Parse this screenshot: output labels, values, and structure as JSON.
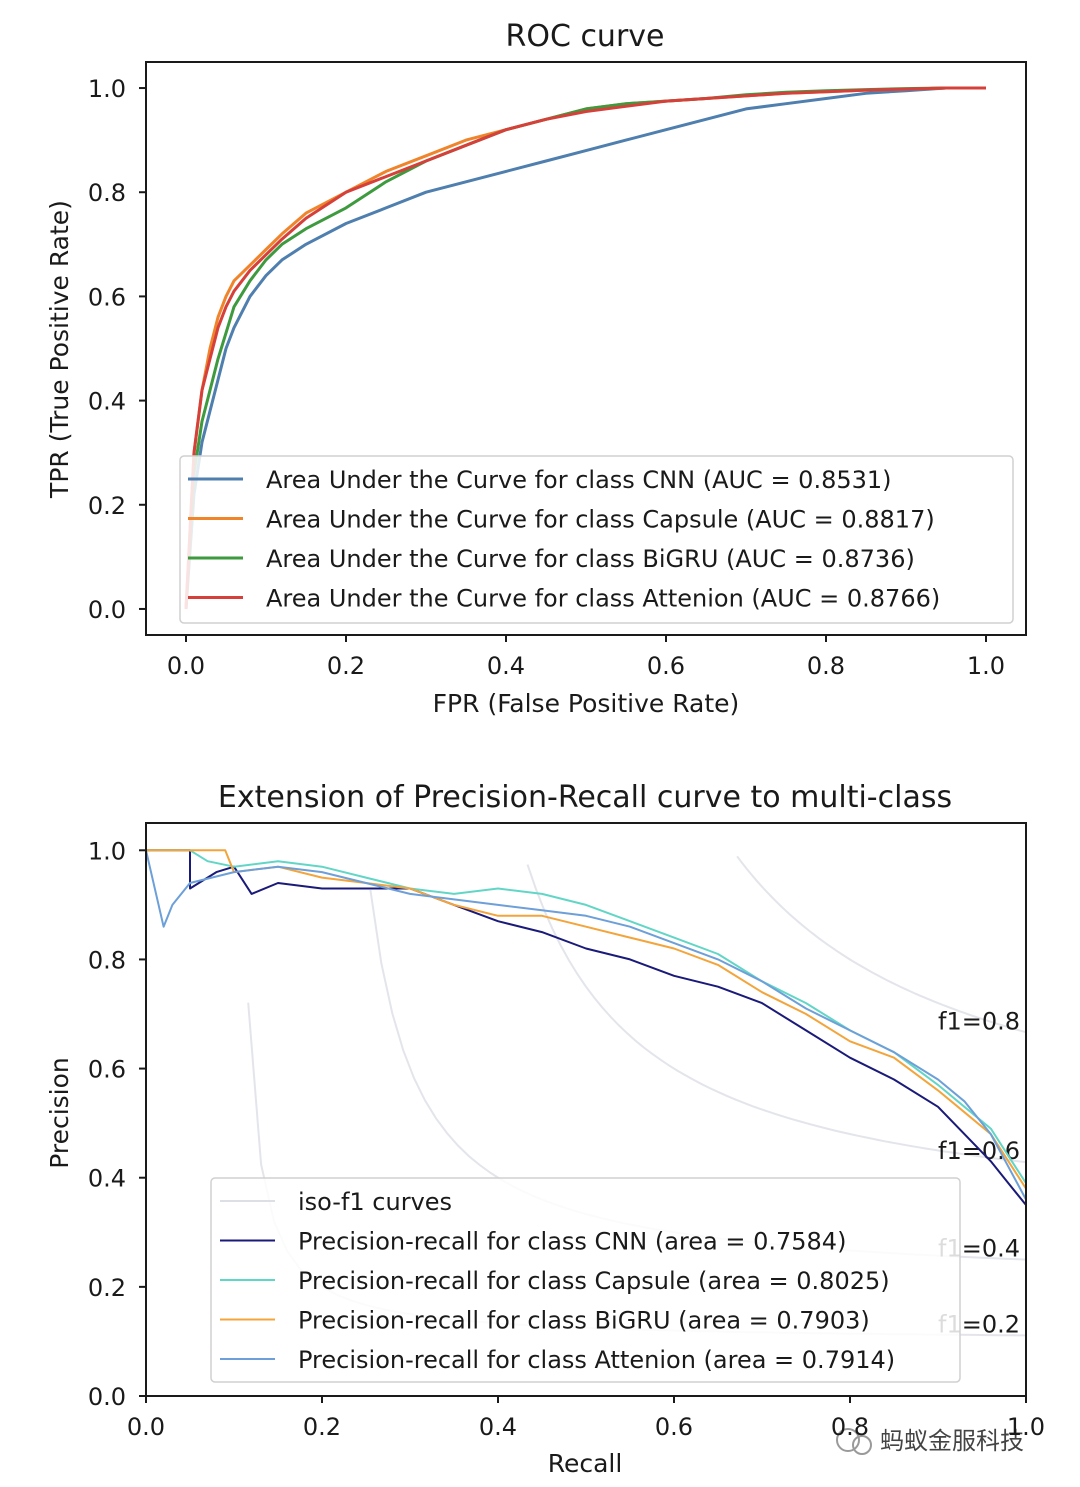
{
  "chart_data": [
    {
      "type": "line",
      "title": "ROC curve",
      "xlabel": "FPR (False Positive Rate)",
      "ylabel": "TPR (True Positive Rate)",
      "xlim": [
        -0.05,
        1.05
      ],
      "ylim": [
        -0.05,
        1.05
      ],
      "xticks": [
        "0.0",
        "0.2",
        "0.4",
        "0.6",
        "0.8",
        "1.0"
      ],
      "yticks": [
        "0.0",
        "0.2",
        "0.4",
        "0.6",
        "0.8",
        "1.0"
      ],
      "legend_position": "lower-right",
      "series": [
        {
          "name": "Area Under the Curve for class CNN (AUC = 0.8531)",
          "color": "#4e7fae",
          "x": [
            0.0,
            0.01,
            0.02,
            0.03,
            0.04,
            0.05,
            0.06,
            0.08,
            0.1,
            0.12,
            0.15,
            0.2,
            0.25,
            0.3,
            0.35,
            0.4,
            0.45,
            0.5,
            0.55,
            0.6,
            0.65,
            0.7,
            0.75,
            0.8,
            0.85,
            0.9,
            0.95,
            1.0
          ],
          "y": [
            0.0,
            0.22,
            0.32,
            0.38,
            0.44,
            0.5,
            0.54,
            0.6,
            0.64,
            0.67,
            0.7,
            0.74,
            0.77,
            0.8,
            0.82,
            0.84,
            0.86,
            0.88,
            0.9,
            0.92,
            0.94,
            0.96,
            0.97,
            0.98,
            0.99,
            0.995,
            1.0,
            1.0
          ]
        },
        {
          "name": "Area Under the Curve for class Capsule (AUC = 0.8817)",
          "color": "#f0842a",
          "x": [
            0.0,
            0.01,
            0.02,
            0.03,
            0.04,
            0.05,
            0.06,
            0.08,
            0.1,
            0.12,
            0.15,
            0.2,
            0.25,
            0.3,
            0.35,
            0.4,
            0.45,
            0.5,
            0.55,
            0.6,
            0.65,
            0.7,
            0.75,
            0.8,
            0.85,
            0.9,
            0.95,
            1.0
          ],
          "y": [
            0.0,
            0.3,
            0.42,
            0.5,
            0.56,
            0.6,
            0.63,
            0.66,
            0.69,
            0.72,
            0.76,
            0.8,
            0.84,
            0.87,
            0.9,
            0.92,
            0.94,
            0.96,
            0.97,
            0.975,
            0.98,
            0.985,
            0.99,
            0.993,
            0.996,
            0.998,
            1.0,
            1.0
          ]
        },
        {
          "name": "Area Under the Curve for class BiGRU (AUC = 0.8736)",
          "color": "#3e9a3e",
          "x": [
            0.0,
            0.01,
            0.02,
            0.03,
            0.04,
            0.05,
            0.06,
            0.08,
            0.1,
            0.12,
            0.15,
            0.2,
            0.25,
            0.3,
            0.35,
            0.4,
            0.45,
            0.5,
            0.55,
            0.6,
            0.65,
            0.7,
            0.75,
            0.8,
            0.85,
            0.9,
            0.95,
            1.0
          ],
          "y": [
            0.0,
            0.26,
            0.36,
            0.42,
            0.48,
            0.53,
            0.58,
            0.63,
            0.67,
            0.7,
            0.73,
            0.77,
            0.82,
            0.86,
            0.89,
            0.92,
            0.94,
            0.96,
            0.97,
            0.975,
            0.98,
            0.987,
            0.992,
            0.995,
            0.997,
            0.999,
            1.0,
            1.0
          ]
        },
        {
          "name": "Area Under the Curve for class Attenion (AUC = 0.8766)",
          "color": "#d6403a",
          "x": [
            0.0,
            0.01,
            0.02,
            0.03,
            0.04,
            0.05,
            0.06,
            0.08,
            0.1,
            0.12,
            0.15,
            0.2,
            0.25,
            0.3,
            0.35,
            0.4,
            0.45,
            0.5,
            0.55,
            0.6,
            0.65,
            0.7,
            0.75,
            0.8,
            0.85,
            0.9,
            0.95,
            1.0
          ],
          "y": [
            0.0,
            0.3,
            0.42,
            0.48,
            0.54,
            0.58,
            0.61,
            0.65,
            0.68,
            0.71,
            0.75,
            0.8,
            0.83,
            0.86,
            0.89,
            0.92,
            0.94,
            0.955,
            0.965,
            0.975,
            0.98,
            0.985,
            0.99,
            0.993,
            0.996,
            0.998,
            1.0,
            1.0
          ]
        }
      ]
    },
    {
      "type": "line",
      "title": "Extension of Precision-Recall curve to multi-class",
      "xlabel": "Recall",
      "ylabel": "Precision",
      "xlim": [
        0.0,
        1.0
      ],
      "ylim": [
        0.0,
        1.05
      ],
      "xticks": [
        "0.0",
        "0.2",
        "0.4",
        "0.6",
        "0.8",
        "1.0"
      ],
      "yticks": [
        "0.0",
        "0.2",
        "0.4",
        "0.6",
        "0.8",
        "1.0"
      ],
      "legend_position": "lower-left",
      "iso_f1": {
        "legend": "iso-f1 curves",
        "color": "#dcdfe6",
        "levels": [
          0.2,
          0.4,
          0.6,
          0.8
        ],
        "labels": [
          "f1=0.2",
          "f1=0.4",
          "f1=0.6",
          "f1=0.8"
        ]
      },
      "series": [
        {
          "name": "Precision-recall for class CNN (area = 0.7584)",
          "color": "#1a1a7a",
          "x": [
            0.0,
            0.02,
            0.05,
            0.05,
            0.08,
            0.1,
            0.12,
            0.15,
            0.2,
            0.25,
            0.3,
            0.35,
            0.4,
            0.45,
            0.5,
            0.55,
            0.6,
            0.65,
            0.7,
            0.75,
            0.8,
            0.85,
            0.9,
            0.93,
            0.96,
            0.98,
            1.0
          ],
          "y": [
            1.0,
            1.0,
            1.0,
            0.93,
            0.96,
            0.97,
            0.92,
            0.94,
            0.93,
            0.93,
            0.93,
            0.9,
            0.87,
            0.85,
            0.82,
            0.8,
            0.77,
            0.75,
            0.72,
            0.67,
            0.62,
            0.58,
            0.53,
            0.48,
            0.43,
            0.39,
            0.35
          ]
        },
        {
          "name": "Precision-recall for class Capsule (area = 0.8025)",
          "color": "#62d6c6",
          "x": [
            0.0,
            0.05,
            0.07,
            0.1,
            0.15,
            0.2,
            0.25,
            0.3,
            0.35,
            0.4,
            0.45,
            0.5,
            0.55,
            0.6,
            0.65,
            0.7,
            0.75,
            0.8,
            0.85,
            0.9,
            0.93,
            0.96,
            0.98,
            1.0
          ],
          "y": [
            1.0,
            1.0,
            0.98,
            0.97,
            0.98,
            0.97,
            0.95,
            0.93,
            0.92,
            0.93,
            0.92,
            0.9,
            0.87,
            0.84,
            0.81,
            0.76,
            0.72,
            0.67,
            0.63,
            0.57,
            0.53,
            0.49,
            0.44,
            0.39
          ]
        },
        {
          "name": "Precision-recall for class BiGRU (area = 0.7903)",
          "color": "#f3a43b",
          "x": [
            0.0,
            0.06,
            0.09,
            0.1,
            0.15,
            0.2,
            0.25,
            0.3,
            0.35,
            0.4,
            0.45,
            0.5,
            0.55,
            0.6,
            0.65,
            0.7,
            0.75,
            0.8,
            0.85,
            0.9,
            0.93,
            0.96,
            0.98,
            1.0
          ],
          "y": [
            1.0,
            1.0,
            1.0,
            0.96,
            0.97,
            0.95,
            0.94,
            0.93,
            0.9,
            0.88,
            0.88,
            0.86,
            0.84,
            0.82,
            0.79,
            0.74,
            0.7,
            0.65,
            0.62,
            0.56,
            0.52,
            0.48,
            0.43,
            0.38
          ]
        },
        {
          "name": "Precision-recall for class Attenion (area = 0.7914)",
          "color": "#6d9fd8",
          "x": [
            0.0,
            0.02,
            0.03,
            0.05,
            0.1,
            0.15,
            0.2,
            0.25,
            0.3,
            0.35,
            0.4,
            0.45,
            0.5,
            0.55,
            0.6,
            0.65,
            0.7,
            0.75,
            0.8,
            0.85,
            0.9,
            0.93,
            0.96,
            0.98,
            1.0
          ],
          "y": [
            1.0,
            0.86,
            0.9,
            0.94,
            0.96,
            0.97,
            0.96,
            0.94,
            0.92,
            0.91,
            0.9,
            0.89,
            0.88,
            0.86,
            0.83,
            0.8,
            0.76,
            0.71,
            0.67,
            0.63,
            0.58,
            0.54,
            0.48,
            0.42,
            0.36
          ]
        }
      ]
    }
  ],
  "watermark": "蚂蚁金服科技"
}
